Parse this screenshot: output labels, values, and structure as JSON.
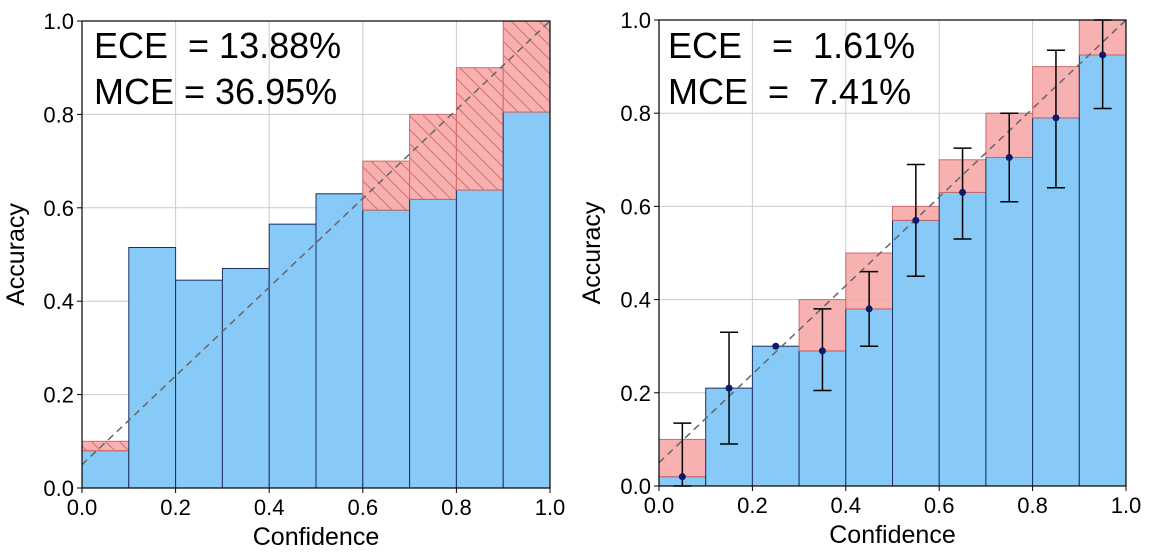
{
  "colors": {
    "bar_fill": "#87CAF7",
    "bar_edge": "#1b2f5e",
    "gap_fill": "#F6A3A3",
    "gap_edge": "#cf6b6b",
    "hatch": "#d36f6f",
    "diagonal": "#666666",
    "grid": "#cccccc",
    "errorbar": "#000000",
    "marker": "#0b1a6b"
  },
  "chart_data": [
    {
      "type": "bar",
      "title": "",
      "xlabel": "Confidence",
      "ylabel": "Accuracy",
      "xlim": [
        0,
        1
      ],
      "ylim": [
        0,
        1
      ],
      "grid": true,
      "xticks": [
        "0.0",
        "0.2",
        "0.4",
        "0.6",
        "0.8",
        "1.0"
      ],
      "yticks": [
        "0.0",
        "0.2",
        "0.4",
        "0.6",
        "0.8",
        "1.0"
      ],
      "bin_edges": [
        0.0,
        0.1,
        0.2,
        0.3,
        0.4,
        0.5,
        0.6,
        0.7,
        0.8,
        0.9,
        1.0
      ],
      "bin_centers": [
        0.05,
        0.15,
        0.25,
        0.35,
        0.45,
        0.55,
        0.65,
        0.75,
        0.85,
        0.95
      ],
      "series": [
        {
          "name": "Accuracy",
          "values": [
            0.08,
            0.515,
            0.445,
            0.47,
            0.565,
            0.63,
            0.595,
            0.618,
            0.638,
            0.805
          ]
        },
        {
          "name": "Gap",
          "values": [
            0.1,
            0.1,
            0.25,
            0.35,
            0.45,
            0.55,
            0.7,
            0.8,
            0.9,
            1.0
          ]
        }
      ],
      "hatched": true,
      "stats": {
        "ece_label": "ECE  = 13.88%",
        "mce_label": "MCE = 36.95%"
      }
    },
    {
      "type": "bar",
      "title": "",
      "xlabel": "Confidence",
      "ylabel": "Accuracy",
      "xlim": [
        0,
        1
      ],
      "ylim": [
        0,
        1
      ],
      "grid": true,
      "xticks": [
        "0.0",
        "0.2",
        "0.4",
        "0.6",
        "0.8",
        "1.0"
      ],
      "yticks": [
        "0.0",
        "0.2",
        "0.4",
        "0.6",
        "0.8",
        "1.0"
      ],
      "bin_edges": [
        0.0,
        0.1,
        0.2,
        0.3,
        0.4,
        0.5,
        0.6,
        0.7,
        0.8,
        0.9,
        1.0
      ],
      "bin_centers": [
        0.05,
        0.15,
        0.25,
        0.35,
        0.45,
        0.55,
        0.65,
        0.75,
        0.85,
        0.95
      ],
      "series": [
        {
          "name": "Accuracy",
          "values": [
            0.02,
            0.21,
            0.3,
            0.29,
            0.38,
            0.57,
            0.63,
            0.705,
            0.79,
            0.925
          ]
        },
        {
          "name": "Gap",
          "values": [
            0.1,
            0.15,
            0.25,
            0.4,
            0.5,
            0.6,
            0.7,
            0.8,
            0.9,
            1.0
          ]
        },
        {
          "name": "Error low",
          "values": [
            0.0,
            0.09,
            0.3,
            0.205,
            0.3,
            0.45,
            0.53,
            0.61,
            0.64,
            0.81
          ]
        },
        {
          "name": "Error high",
          "values": [
            0.135,
            0.33,
            0.3,
            0.38,
            0.46,
            0.69,
            0.725,
            0.8,
            0.935,
            1.0
          ]
        }
      ],
      "hatched": false,
      "stats": {
        "ece_label": "ECE   =  1.61%",
        "mce_label": "MCE  =  7.41%"
      }
    }
  ]
}
